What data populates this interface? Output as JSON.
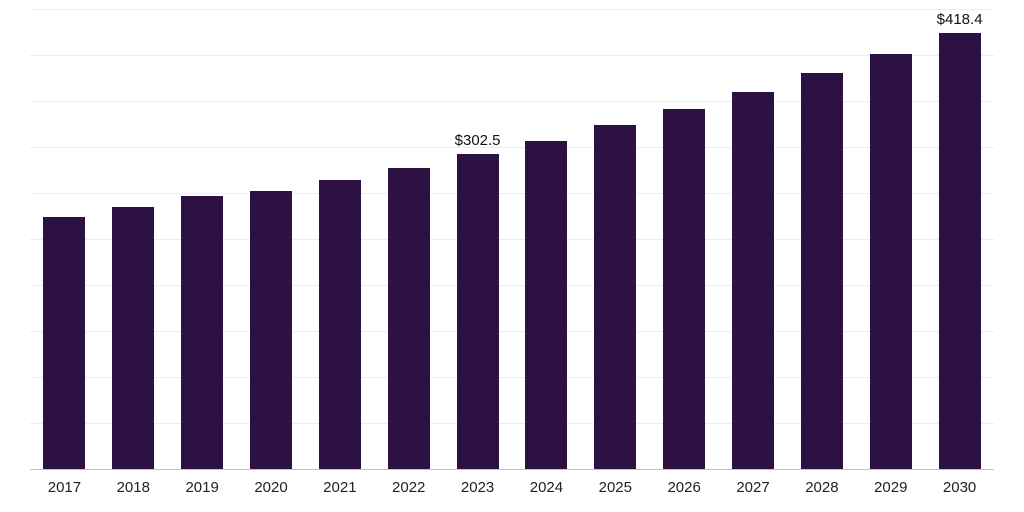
{
  "chart_data": {
    "type": "bar",
    "title": "",
    "xlabel": "",
    "ylabel": "",
    "categories": [
      "2017",
      "2018",
      "2019",
      "2020",
      "2021",
      "2022",
      "2023",
      "2024",
      "2025",
      "2026",
      "2027",
      "2028",
      "2029",
      "2030"
    ],
    "values": [
      242,
      252,
      262,
      267,
      278,
      289,
      302.5,
      315,
      330,
      346,
      362,
      380,
      398,
      418.4
    ],
    "data_labels": [
      "",
      "",
      "",
      "",
      "",
      "",
      "$302.5",
      "",
      "",
      "",
      "",
      "",
      "",
      "$418.4"
    ],
    "ylim": [
      0,
      450
    ],
    "grid": "on",
    "grid_step": 44,
    "grid_max": 440,
    "legend": "none",
    "bar_color": "#2e1143",
    "gridline_color": "#ececec",
    "axis_line_color": "#c2c2c2",
    "label_color": "#111111",
    "tick_label_color": "#222222"
  }
}
